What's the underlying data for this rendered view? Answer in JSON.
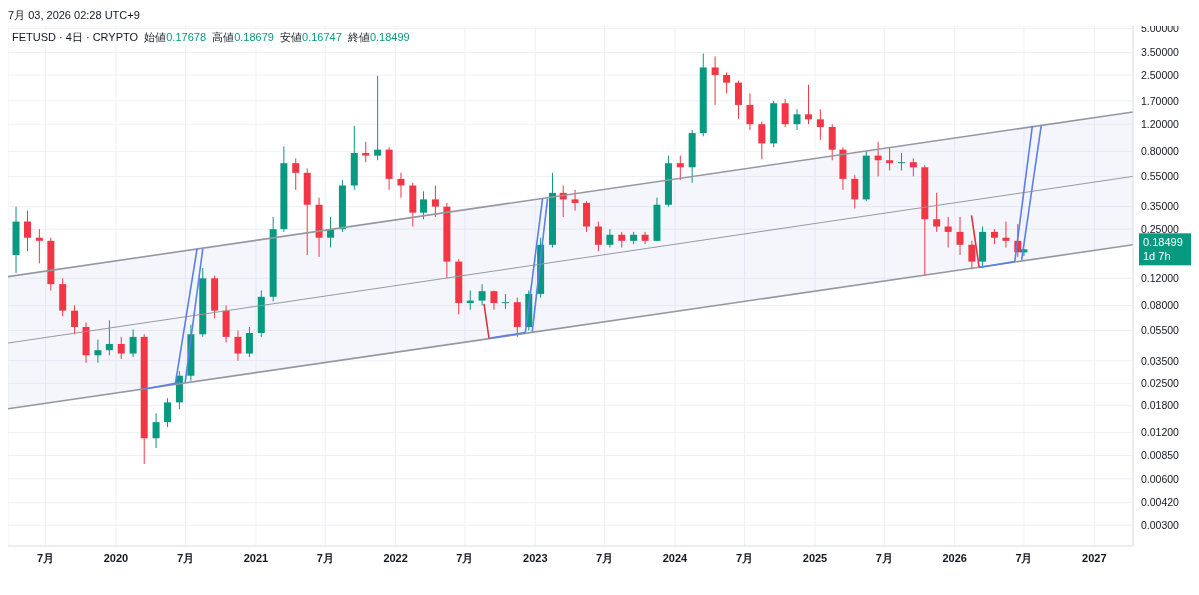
{
  "chart_data": {
    "type": "candlestick",
    "subtitle": "7月 03, 2026 02:28 UTC+9",
    "title": "FETUSD · 4日 · CRYPTO  始値0.17678  高値0.18679  安値0.16747  終値0.18499",
    "annotations": [
      "0.18499",
      "1d 7h"
    ],
    "x": [
      "2019-04-15",
      "2019-05-15",
      "2019-06-15",
      "2019-07-15",
      "2019-08-15",
      "2019-09-15",
      "2019-10-15",
      "2019-11-15",
      "2019-12-15",
      "2020-01-15",
      "2020-02-15",
      "2020-03-15",
      "2020-04-15",
      "2020-05-15",
      "2020-06-15",
      "2020-07-15",
      "2020-08-15",
      "2020-09-15",
      "2020-10-15",
      "2020-11-15",
      "2020-12-15",
      "2021-01-15",
      "2021-02-15",
      "2021-03-15",
      "2021-04-15",
      "2021-05-15",
      "2021-06-15",
      "2021-07-15",
      "2021-08-15",
      "2021-09-15",
      "2021-10-15",
      "2021-11-15",
      "2021-12-15",
      "2022-01-15",
      "2022-02-15",
      "2022-03-15",
      "2022-04-15",
      "2022-05-15",
      "2022-06-15",
      "2022-07-15",
      "2022-08-15",
      "2022-09-15",
      "2022-10-15",
      "2022-11-15",
      "2022-12-15",
      "2023-01-15",
      "2023-02-15",
      "2023-03-15",
      "2023-04-15",
      "2023-05-15",
      "2023-06-15",
      "2023-07-15",
      "2023-08-15",
      "2023-09-15",
      "2023-10-15",
      "2023-11-15",
      "2023-12-15",
      "2024-01-15",
      "2024-02-15",
      "2024-03-15",
      "2024-04-15",
      "2024-05-15",
      "2024-06-15",
      "2024-07-15",
      "2024-08-15",
      "2024-09-15",
      "2024-10-15",
      "2024-11-15",
      "2024-12-15",
      "2025-01-15",
      "2025-02-15",
      "2025-03-15",
      "2025-04-15",
      "2025-05-15",
      "2025-06-15",
      "2025-07-15",
      "2025-08-15",
      "2025-09-15",
      "2025-10-15",
      "2025-11-15",
      "2025-12-15",
      "2026-01-15",
      "2026-02-15",
      "2026-03-15",
      "2026-04-15",
      "2026-05-15",
      "2026-06-15",
      "2026-07-01"
    ],
    "ohlc": [
      [
        0.17,
        0.35,
        0.13,
        0.28
      ],
      [
        0.28,
        0.33,
        0.18,
        0.22
      ],
      [
        0.22,
        0.25,
        0.15,
        0.21
      ],
      [
        0.21,
        0.22,
        0.1,
        0.11
      ],
      [
        0.11,
        0.12,
        0.068,
        0.074
      ],
      [
        0.074,
        0.08,
        0.052,
        0.058
      ],
      [
        0.058,
        0.062,
        0.034,
        0.038
      ],
      [
        0.038,
        0.048,
        0.034,
        0.041
      ],
      [
        0.041,
        0.064,
        0.038,
        0.045
      ],
      [
        0.045,
        0.05,
        0.036,
        0.039
      ],
      [
        0.039,
        0.056,
        0.037,
        0.05
      ],
      [
        0.05,
        0.052,
        0.0075,
        0.011
      ],
      [
        0.011,
        0.016,
        0.0095,
        0.014
      ],
      [
        0.014,
        0.02,
        0.013,
        0.0188
      ],
      [
        0.0188,
        0.03,
        0.017,
        0.028
      ],
      [
        0.028,
        0.06,
        0.026,
        0.052
      ],
      [
        0.052,
        0.14,
        0.05,
        0.12
      ],
      [
        0.12,
        0.125,
        0.066,
        0.074
      ],
      [
        0.074,
        0.08,
        0.046,
        0.05
      ],
      [
        0.05,
        0.055,
        0.035,
        0.039
      ],
      [
        0.039,
        0.058,
        0.037,
        0.053
      ],
      [
        0.053,
        0.1,
        0.05,
        0.091
      ],
      [
        0.091,
        0.3,
        0.085,
        0.25
      ],
      [
        0.25,
        0.86,
        0.24,
        0.67
      ],
      [
        0.67,
        0.72,
        0.45,
        0.58
      ],
      [
        0.58,
        0.62,
        0.17,
        0.36
      ],
      [
        0.36,
        0.4,
        0.165,
        0.22
      ],
      [
        0.22,
        0.3,
        0.19,
        0.25
      ],
      [
        0.25,
        0.52,
        0.24,
        0.48
      ],
      [
        0.48,
        1.17,
        0.45,
        0.78
      ],
      [
        0.78,
        0.92,
        0.68,
        0.75
      ],
      [
        0.75,
        2.47,
        0.7,
        0.82
      ],
      [
        0.82,
        0.85,
        0.45,
        0.53
      ],
      [
        0.53,
        0.58,
        0.4,
        0.48
      ],
      [
        0.48,
        0.5,
        0.26,
        0.32
      ],
      [
        0.32,
        0.44,
        0.29,
        0.39
      ],
      [
        0.39,
        0.48,
        0.3,
        0.35
      ],
      [
        0.35,
        0.37,
        0.12,
        0.154
      ],
      [
        0.154,
        0.16,
        0.07,
        0.083
      ],
      [
        0.083,
        0.1,
        0.075,
        0.086
      ],
      [
        0.086,
        0.11,
        0.08,
        0.099
      ],
      [
        0.099,
        0.1,
        0.075,
        0.083
      ],
      [
        0.083,
        0.095,
        0.076,
        0.084
      ],
      [
        0.084,
        0.09,
        0.05,
        0.058
      ],
      [
        0.058,
        0.1,
        0.055,
        0.095
      ],
      [
        0.095,
        0.22,
        0.09,
        0.198
      ],
      [
        0.198,
        0.58,
        0.19,
        0.43
      ],
      [
        0.43,
        0.48,
        0.3,
        0.39
      ],
      [
        0.39,
        0.45,
        0.33,
        0.37
      ],
      [
        0.37,
        0.38,
        0.24,
        0.26
      ],
      [
        0.26,
        0.28,
        0.18,
        0.198
      ],
      [
        0.198,
        0.25,
        0.19,
        0.23
      ],
      [
        0.23,
        0.24,
        0.19,
        0.21
      ],
      [
        0.21,
        0.24,
        0.2,
        0.23
      ],
      [
        0.23,
        0.24,
        0.2,
        0.21
      ],
      [
        0.21,
        0.4,
        0.21,
        0.36
      ],
      [
        0.36,
        0.75,
        0.35,
        0.67
      ],
      [
        0.67,
        0.75,
        0.52,
        0.63
      ],
      [
        0.63,
        1.1,
        0.5,
        1.05
      ],
      [
        1.05,
        3.45,
        1.0,
        2.8
      ],
      [
        2.8,
        3.3,
        1.6,
        2.5
      ],
      [
        2.5,
        2.6,
        1.9,
        2.23
      ],
      [
        2.23,
        2.3,
        1.3,
        1.6
      ],
      [
        1.6,
        1.9,
        1.1,
        1.2
      ],
      [
        1.2,
        1.25,
        0.71,
        0.9
      ],
      [
        0.9,
        1.7,
        0.85,
        1.64
      ],
      [
        1.64,
        1.75,
        1.15,
        1.2
      ],
      [
        1.2,
        1.5,
        1.1,
        1.39
      ],
      [
        1.39,
        2.16,
        1.2,
        1.29
      ],
      [
        1.29,
        1.5,
        0.95,
        1.15
      ],
      [
        1.15,
        1.2,
        0.7,
        0.82
      ],
      [
        0.82,
        0.85,
        0.45,
        0.53
      ],
      [
        0.53,
        0.56,
        0.34,
        0.39
      ],
      [
        0.39,
        0.8,
        0.38,
        0.75
      ],
      [
        0.75,
        0.92,
        0.55,
        0.7
      ],
      [
        0.7,
        0.85,
        0.6,
        0.67
      ],
      [
        0.67,
        0.78,
        0.6,
        0.68
      ],
      [
        0.68,
        0.72,
        0.55,
        0.63
      ],
      [
        0.63,
        0.65,
        0.125,
        0.29
      ],
      [
        0.29,
        0.43,
        0.24,
        0.26
      ],
      [
        0.26,
        0.3,
        0.19,
        0.24
      ],
      [
        0.24,
        0.3,
        0.17,
        0.198
      ],
      [
        0.198,
        0.21,
        0.137,
        0.154
      ],
      [
        0.154,
        0.26,
        0.14,
        0.24
      ],
      [
        0.24,
        0.25,
        0.2,
        0.22
      ],
      [
        0.22,
        0.28,
        0.19,
        0.21
      ],
      [
        0.21,
        0.27,
        0.165,
        0.177
      ],
      [
        0.17678,
        0.18679,
        0.16747,
        0.18499
      ]
    ],
    "colors": [
      "#089981",
      "#f23645",
      "#f23645",
      "#f23645",
      "#f23645",
      "#f23645",
      "#f23645",
      "#089981",
      "#089981",
      "#f23645",
      "#089981",
      "#f23645",
      "#089981",
      "#089981",
      "#089981",
      "#089981",
      "#089981",
      "#f23645",
      "#f23645",
      "#f23645",
      "#089981",
      "#089981",
      "#089981",
      "#089981",
      "#f23645",
      "#f23645",
      "#f23645",
      "#089981",
      "#089981",
      "#089981",
      "#f23645",
      "#089981",
      "#f23645",
      "#f23645",
      "#f23645",
      "#089981",
      "#f23645",
      "#f23645",
      "#f23645",
      "#089981",
      "#089981",
      "#f23645",
      "#089981",
      "#f23645",
      "#089981",
      "#089981",
      "#089981",
      "#f23645",
      "#f23645",
      "#f23645",
      "#f23645",
      "#089981",
      "#f23645",
      "#089981",
      "#f23645",
      "#089981",
      "#089981",
      "#f23645",
      "#089981",
      "#089981",
      "#f23645",
      "#f23645",
      "#f23645",
      "#f23645",
      "#f23645",
      "#089981",
      "#f23645",
      "#089981",
      "#f23645",
      "#f23645",
      "#f23645",
      "#f23645",
      "#f23645",
      "#089981",
      "#f23645",
      "#f23645",
      "#089981",
      "#f23645",
      "#f23645",
      "#f23645",
      "#f23645",
      "#f23645",
      "#f23645",
      "#089981",
      "#f23645",
      "#f23645",
      "#f23645",
      "#089981"
    ],
    "series": [
      {
        "type": "line",
        "color": "#9598a1",
        "x": [
          "2019-03-25",
          "2027-04-12"
        ],
        "values": [
          0.0456,
          0.55
        ],
        "lower": [
          0.0171,
          0.198
        ],
        "upper": [
          0.123,
          1.44
        ]
      },
      {
        "type": "line",
        "color": "#9598a1",
        "x": [
          "2019-03-25",
          "2027-04-12"
        ],
        "values": [
          0.123,
          1.44
        ]
      },
      {
        "type": "line",
        "color": "#9598a1",
        "x": [
          "2019-03-25",
          "2027-04-12"
        ],
        "values": [
          0.0171,
          0.198
        ]
      },
      {
        "type": "line",
        "color": "#5b7fe8",
        "x": [
          "2020-03-10",
          "2020-06-15"
        ],
        "values": [
          0.0228,
          0.0253
        ]
      },
      {
        "type": "line",
        "color": "#5b7fe8",
        "x": [
          "2020-06-04",
          "2020-07-31"
        ],
        "values": [
          0.0245,
          0.186
        ]
      },
      {
        "type": "line",
        "color": "#5b7fe8",
        "x": [
          "2020-06-30",
          "2020-08-15"
        ],
        "values": [
          0.0253,
          0.186
        ]
      },
      {
        "type": "line",
        "color": "#e0323c",
        "x": [
          "2022-08-20",
          "2022-09-02"
        ],
        "values": [
          0.082,
          0.049
        ]
      },
      {
        "type": "line",
        "color": "#5b7fe8",
        "x": [
          "2022-09-02",
          "2022-12-06"
        ],
        "values": [
          0.049,
          0.0534
        ]
      },
      {
        "type": "line",
        "color": "#5b7fe8",
        "x": [
          "2022-12-06",
          "2023-01-20"
        ],
        "values": [
          0.0534,
          0.394
        ]
      },
      {
        "type": "line",
        "color": "#5b7fe8",
        "x": [
          "2022-12-24",
          "2023-02-02"
        ],
        "values": [
          0.0541,
          0.394
        ]
      },
      {
        "type": "line",
        "color": "#e0323c",
        "x": [
          "2026-02-14",
          "2026-03-06"
        ],
        "values": [
          0.307,
          0.141
        ]
      },
      {
        "type": "line",
        "color": "#5b7fe8",
        "x": [
          "2026-03-06",
          "2026-06-07"
        ],
        "values": [
          0.141,
          0.154
        ]
      },
      {
        "type": "line",
        "color": "#5b7fe8",
        "x": [
          "2026-06-07",
          "2026-07-23"
        ],
        "values": [
          0.154,
          1.17
        ]
      },
      {
        "type": "line",
        "color": "#5b7fe8",
        "x": [
          "2026-06-25",
          "2026-08-15"
        ],
        "values": [
          0.158,
          1.17
        ]
      }
    ],
    "log": "y",
    "grid": true,
    "xlim": [
      "2019-03-25",
      "2027-04-12"
    ],
    "xticks": [
      {
        "value": "2019-07-01",
        "label": "7月"
      },
      {
        "value": "2020-01-01",
        "label": "2020"
      },
      {
        "value": "2020-07-01",
        "label": "7月"
      },
      {
        "value": "2021-01-01",
        "label": "2021"
      },
      {
        "value": "2021-07-01",
        "label": "7月"
      },
      {
        "value": "2022-01-01",
        "label": "2022"
      },
      {
        "value": "2022-07-01",
        "label": "7月"
      },
      {
        "value": "2023-01-01",
        "label": "2023"
      },
      {
        "value": "2023-07-01",
        "label": "7月"
      },
      {
        "value": "2024-01-01",
        "label": "2024"
      },
      {
        "value": "2024-07-01",
        "label": "7月"
      },
      {
        "value": "2025-01-01",
        "label": "2025"
      },
      {
        "value": "2025-07-01",
        "label": "7月"
      },
      {
        "value": "2026-01-01",
        "label": "2026"
      },
      {
        "value": "2026-07-01",
        "label": "7月"
      },
      {
        "value": "2027-01-01",
        "label": "2027"
      }
    ],
    "ylim": [
      0.0022,
      5.2
    ],
    "yticks": [
      {
        "value": 0.003,
        "label": "0.00300"
      },
      {
        "value": 0.0042,
        "label": "0.00420"
      },
      {
        "value": 0.006,
        "label": "0.00600"
      },
      {
        "value": 0.0085,
        "label": "0.00850"
      },
      {
        "value": 0.012,
        "label": "0.01200"
      },
      {
        "value": 0.018,
        "label": "0.01800"
      },
      {
        "value": 0.025,
        "label": "0.02500"
      },
      {
        "value": 0.035,
        "label": "0.03500"
      },
      {
        "value": 0.055,
        "label": "0.05500"
      },
      {
        "value": 0.08,
        "label": "0.08000"
      },
      {
        "value": 0.12,
        "label": "0.12000"
      },
      {
        "value": 0.25,
        "label": "0.25000"
      },
      {
        "value": 0.35,
        "label": "0.35000"
      },
      {
        "value": 0.55,
        "label": "0.55000"
      },
      {
        "value": 0.8,
        "label": "0.80000"
      },
      {
        "value": 1.2,
        "label": "1.20000"
      },
      {
        "value": 1.7,
        "label": "1.70000"
      },
      {
        "value": 2.5,
        "label": "2.50000"
      },
      {
        "value": 3.5,
        "label": "3.50000"
      },
      {
        "value": 5,
        "label": "5.00000"
      }
    ]
  }
}
